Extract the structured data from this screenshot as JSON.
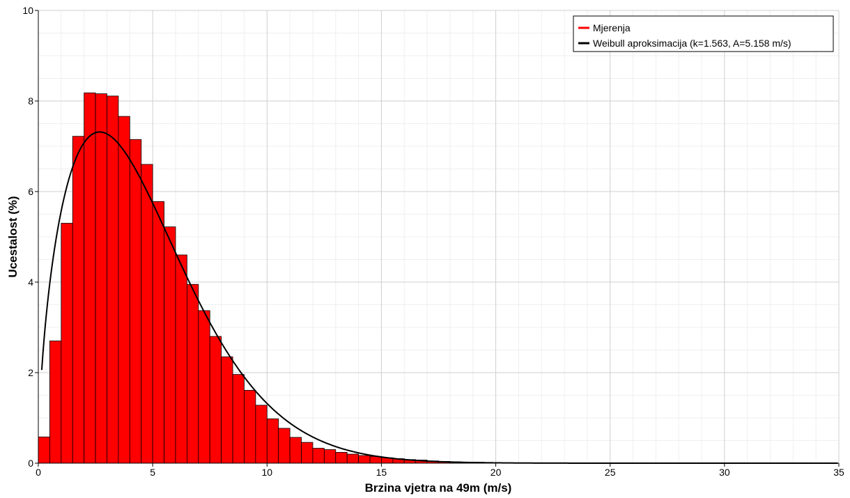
{
  "chart_data": {
    "type": "bar",
    "xlabel": "Brzina vjetra na 49m (m/s)",
    "ylabel": "Ucestalost (%)",
    "xlim": [
      0,
      35
    ],
    "ylim": [
      0,
      10
    ],
    "xticks": [
      0,
      5,
      10,
      15,
      20,
      25,
      30,
      35
    ],
    "yticks": [
      0,
      2,
      4,
      6,
      8,
      10
    ],
    "grid": true,
    "legend_position": "top-right",
    "bin_width": 0.5,
    "bins": [
      {
        "x": 0.0,
        "y": 0.58
      },
      {
        "x": 0.5,
        "y": 2.7
      },
      {
        "x": 1.0,
        "y": 5.3
      },
      {
        "x": 1.5,
        "y": 7.22
      },
      {
        "x": 2.0,
        "y": 8.18
      },
      {
        "x": 2.5,
        "y": 8.16
      },
      {
        "x": 3.0,
        "y": 8.11
      },
      {
        "x": 3.5,
        "y": 7.66
      },
      {
        "x": 4.0,
        "y": 7.15
      },
      {
        "x": 4.5,
        "y": 6.6
      },
      {
        "x": 5.0,
        "y": 5.78
      },
      {
        "x": 5.5,
        "y": 5.22
      },
      {
        "x": 6.0,
        "y": 4.6
      },
      {
        "x": 6.5,
        "y": 3.95
      },
      {
        "x": 7.0,
        "y": 3.37
      },
      {
        "x": 7.5,
        "y": 2.8
      },
      {
        "x": 8.0,
        "y": 2.35
      },
      {
        "x": 8.5,
        "y": 1.96
      },
      {
        "x": 9.0,
        "y": 1.61
      },
      {
        "x": 9.5,
        "y": 1.28
      },
      {
        "x": 10.0,
        "y": 0.98
      },
      {
        "x": 10.5,
        "y": 0.77
      },
      {
        "x": 11.0,
        "y": 0.57
      },
      {
        "x": 11.5,
        "y": 0.46
      },
      {
        "x": 12.0,
        "y": 0.33
      },
      {
        "x": 12.5,
        "y": 0.3
      },
      {
        "x": 13.0,
        "y": 0.24
      },
      {
        "x": 13.5,
        "y": 0.2
      },
      {
        "x": 14.0,
        "y": 0.17
      },
      {
        "x": 14.5,
        "y": 0.15
      },
      {
        "x": 15.0,
        "y": 0.12
      },
      {
        "x": 15.5,
        "y": 0.1
      },
      {
        "x": 16.0,
        "y": 0.08
      },
      {
        "x": 16.5,
        "y": 0.07
      },
      {
        "x": 17.0,
        "y": 0.05
      },
      {
        "x": 17.5,
        "y": 0.04
      },
      {
        "x": 18.0,
        "y": 0.03
      },
      {
        "x": 18.5,
        "y": 0.02
      },
      {
        "x": 19.0,
        "y": 0.02
      },
      {
        "x": 19.5,
        "y": 0.01
      }
    ],
    "series": [
      {
        "name": "Mjerenja",
        "color": "#ff0000",
        "type": "bar"
      },
      {
        "name": "Weibull aproksimacija (k=1.563, A=5.158 m/s)",
        "color": "#000000",
        "type": "line",
        "weibull_k": 1.563,
        "weibull_A": 5.158
      }
    ]
  }
}
